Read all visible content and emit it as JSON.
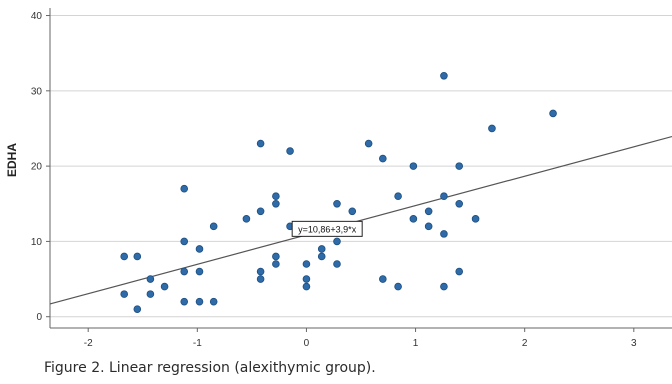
{
  "caption": "Figure 2. Linear regression (alexithymic group).",
  "chart_data": {
    "type": "scatter",
    "title": "",
    "xlabel": "",
    "ylabel": "EDHA",
    "xlim": [
      -2.35,
      3.35
    ],
    "ylim": [
      -1.5,
      41
    ],
    "x_ticks": [
      -2,
      -1,
      0,
      1,
      2,
      3
    ],
    "y_ticks": [
      0,
      10,
      20,
      30,
      40
    ],
    "grid": "horizontal",
    "marker_color": "#2E6BA8",
    "line_color": "#555555",
    "regression": {
      "intercept": 10.86,
      "slope": 3.9,
      "label": "y=10,86+3,9*x"
    },
    "points": [
      [
        -1.67,
        8
      ],
      [
        -1.67,
        3
      ],
      [
        -1.55,
        8
      ],
      [
        -1.55,
        1
      ],
      [
        -1.43,
        5
      ],
      [
        -1.43,
        3
      ],
      [
        -1.3,
        4
      ],
      [
        -1.12,
        17
      ],
      [
        -1.12,
        10
      ],
      [
        -1.12,
        6
      ],
      [
        -1.12,
        2
      ],
      [
        -0.98,
        9
      ],
      [
        -0.98,
        6
      ],
      [
        -0.98,
        2
      ],
      [
        -0.85,
        12
      ],
      [
        -0.85,
        2
      ],
      [
        -0.55,
        13
      ],
      [
        -0.42,
        23
      ],
      [
        -0.42,
        14
      ],
      [
        -0.42,
        6
      ],
      [
        -0.42,
        5
      ],
      [
        -0.28,
        16
      ],
      [
        -0.28,
        15
      ],
      [
        -0.28,
        8
      ],
      [
        -0.28,
        7
      ],
      [
        -0.15,
        22
      ],
      [
        -0.15,
        12
      ],
      [
        0.0,
        7
      ],
      [
        0.0,
        5
      ],
      [
        0.0,
        4
      ],
      [
        0.14,
        9
      ],
      [
        0.14,
        8
      ],
      [
        0.28,
        15
      ],
      [
        0.28,
        10
      ],
      [
        0.28,
        7
      ],
      [
        0.42,
        14
      ],
      [
        0.57,
        23
      ],
      [
        0.7,
        21
      ],
      [
        0.7,
        5
      ],
      [
        0.84,
        16
      ],
      [
        0.84,
        4
      ],
      [
        0.98,
        20
      ],
      [
        0.98,
        13
      ],
      [
        1.12,
        14
      ],
      [
        1.12,
        12
      ],
      [
        1.26,
        32
      ],
      [
        1.26,
        16
      ],
      [
        1.26,
        11
      ],
      [
        1.26,
        4
      ],
      [
        1.4,
        20
      ],
      [
        1.4,
        15
      ],
      [
        1.4,
        6
      ],
      [
        1.55,
        13
      ],
      [
        1.7,
        25
      ],
      [
        2.26,
        27
      ]
    ]
  }
}
